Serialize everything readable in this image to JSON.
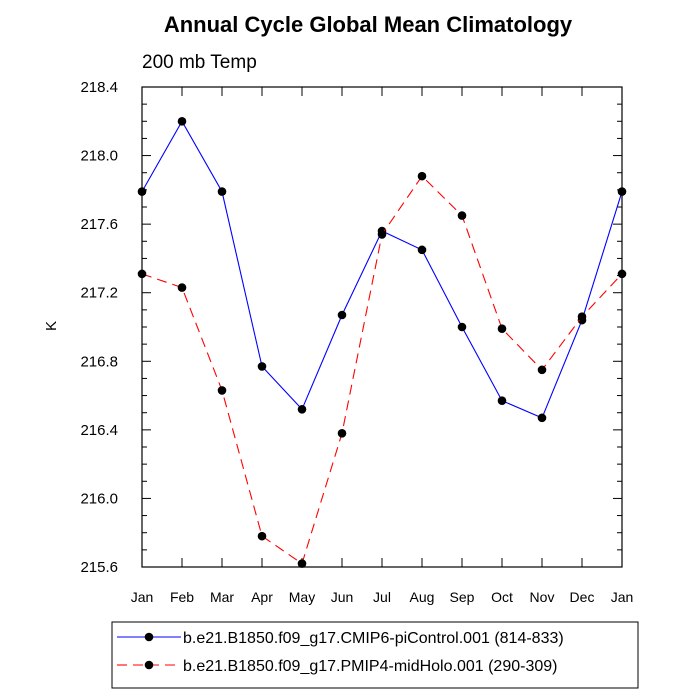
{
  "chart_data": {
    "type": "line",
    "title": "Annual Cycle Global Mean Climatology",
    "subtitle": "200 mb Temp",
    "ylabel": "K",
    "xlabel": "",
    "categories": [
      "Jan",
      "Feb",
      "Mar",
      "Apr",
      "May",
      "Jun",
      "Jul",
      "Aug",
      "Sep",
      "Oct",
      "Nov",
      "Dec",
      "Jan"
    ],
    "ylim": [
      215.6,
      218.4
    ],
    "yticks": [
      "218.4",
      "218.0",
      "217.6",
      "217.2",
      "216.8",
      "216.4",
      "216.0",
      "215.6"
    ],
    "series": [
      {
        "name": "b.e21.B1850.f09_g17.CMIP6-piControl.001 (814-833)",
        "color": "#0000ff",
        "dash": "solid",
        "values": [
          217.79,
          218.2,
          217.79,
          216.77,
          216.52,
          217.07,
          217.56,
          217.45,
          217.0,
          216.57,
          216.47,
          217.04,
          217.79
        ]
      },
      {
        "name": "b.e21.B1850.f09_g17.PMIP4-midHolo.001 (290-309)",
        "color": "#ff0000",
        "dash": "dashed",
        "values": [
          217.31,
          217.23,
          216.63,
          215.78,
          215.62,
          216.38,
          217.54,
          217.88,
          217.65,
          216.99,
          216.75,
          217.06,
          217.31
        ]
      }
    ],
    "marker": "filled-circle",
    "marker_color": "#000000",
    "grid": false,
    "legend_position": "bottom"
  }
}
